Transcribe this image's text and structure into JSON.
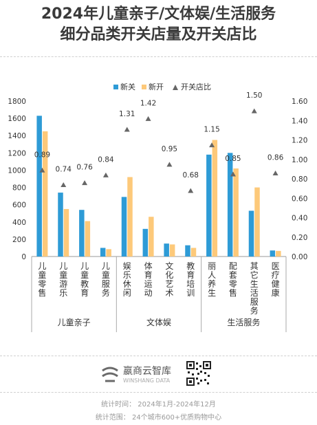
{
  "title_line1": "2024年儿童亲子/文体娱/生活服务",
  "title_line2": "细分品类开关店量及开关店比",
  "chart_data": {
    "type": "bar",
    "legend": [
      "新关",
      "新开",
      "开关店比"
    ],
    "legend_position": "top-right",
    "y_left": {
      "ticks": [
        "0",
        "200",
        "400",
        "600",
        "800",
        "1000",
        "1200",
        "1400",
        "1600",
        "1800"
      ],
      "range": [
        0,
        1800
      ]
    },
    "y_right": {
      "ticks": [
        "0.00",
        "0.20",
        "0.40",
        "0.60",
        "0.80",
        "1.00",
        "1.20",
        "1.40",
        "1.60"
      ],
      "range": [
        0,
        1.6
      ]
    },
    "groups": [
      {
        "name": "儿童亲子",
        "categories": [
          "儿童零售",
          "儿童游乐",
          "儿童教育",
          "儿童服务"
        ]
      },
      {
        "name": "文体娱",
        "categories": [
          "娱乐休闲",
          "体育运动",
          "文化艺术",
          "教育培训"
        ]
      },
      {
        "name": "生活服务",
        "categories": [
          "丽人养生",
          "配套零售",
          "其它生活服务",
          "医疗健康"
        ]
      }
    ],
    "categories": [
      "儿童零售",
      "儿童游乐",
      "儿童教育",
      "儿童服务",
      "娱乐休闲",
      "体育运动",
      "文化艺术",
      "教育培训",
      "丽人养生",
      "配套零售",
      "其它生活服务",
      "医疗健康"
    ],
    "series": [
      {
        "name": "新关",
        "values": [
          1630,
          740,
          540,
          100,
          690,
          320,
          150,
          130,
          1180,
          1200,
          530,
          70
        ]
      },
      {
        "name": "新开",
        "values": [
          1450,
          550,
          410,
          85,
          920,
          460,
          140,
          100,
          1350,
          1020,
          800,
          65
        ]
      }
    ],
    "ratio": {
      "name": "开关店比",
      "values": [
        0.89,
        0.74,
        0.76,
        0.84,
        1.31,
        1.42,
        0.95,
        0.68,
        1.15,
        0.85,
        1.5,
        0.86
      ],
      "labels": [
        "0.89",
        "0.74",
        "0.76",
        "0.84",
        "1.31",
        "1.42",
        "0.95",
        "0.68",
        "1.15",
        "0.85",
        "1.50",
        "0.86"
      ]
    },
    "colors": {
      "closed": "#2e9bd6",
      "opened": "#fdc97a",
      "ratio": "#666666",
      "axis": "#888888"
    }
  },
  "footer": {
    "brand_name": "嬴商云智库",
    "brand_sub": "WINSHANG DATA",
    "stat_time": "统计时间：  2024年1月-2024年12月",
    "stat_scope": "统计范围：  24个城市600+优质购物中心"
  }
}
